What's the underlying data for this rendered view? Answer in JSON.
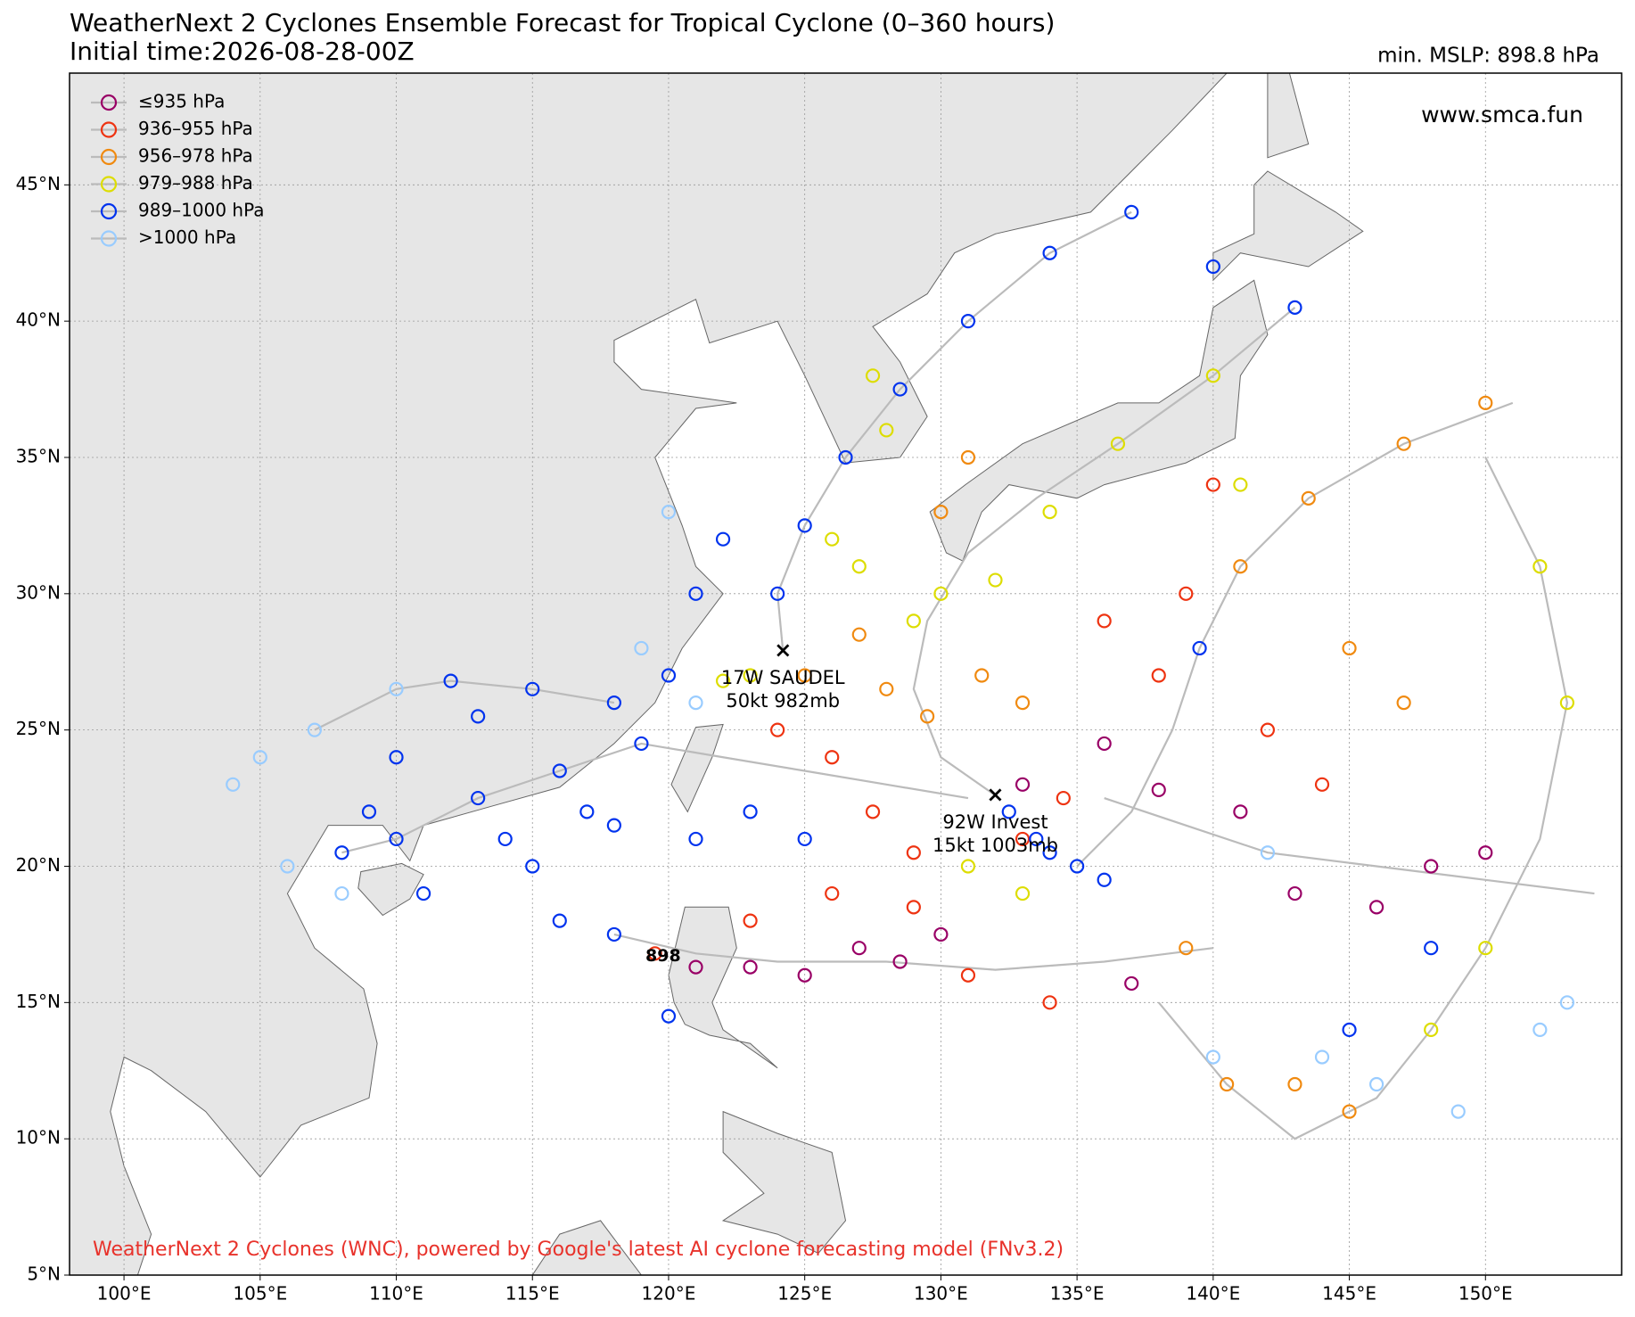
{
  "chart_data": {
    "type": "track-map",
    "title": "WeatherNext 2 Cyclones Ensemble Forecast for Tropical Cyclone (0–360 hours)",
    "subtitle": "Initial time:2026-08-28-00Z",
    "min_mslp": "min. MSLP: 898.8 hPa",
    "website": "www.smca.fun",
    "footer": "WeatherNext 2 Cyclones (WNC), powered by Google's latest AI cyclone forecasting model (FNv3.2)",
    "xlim": [
      98,
      155
    ],
    "ylim": [
      5,
      49.1
    ],
    "grid": true,
    "legend": "upper left",
    "track_color": "#bbbbbb",
    "xticks": [
      {
        "value": 100,
        "label": "100°E"
      },
      {
        "value": 105,
        "label": "105°E"
      },
      {
        "value": 110,
        "label": "110°E"
      },
      {
        "value": 115,
        "label": "115°E"
      },
      {
        "value": 120,
        "label": "120°E"
      },
      {
        "value": 125,
        "label": "125°E"
      },
      {
        "value": 130,
        "label": "130°E"
      },
      {
        "value": 135,
        "label": "135°E"
      },
      {
        "value": 140,
        "label": "140°E"
      },
      {
        "value": 145,
        "label": "145°E"
      },
      {
        "value": 150,
        "label": "150°E"
      }
    ],
    "yticks": [
      {
        "value": 5,
        "label": "5°N"
      },
      {
        "value": 10,
        "label": "10°N"
      },
      {
        "value": 15,
        "label": "15°N"
      },
      {
        "value": 20,
        "label": "20°N"
      },
      {
        "value": 25,
        "label": "25°N"
      },
      {
        "value": 30,
        "label": "30°N"
      },
      {
        "value": 35,
        "label": "35°N"
      },
      {
        "value": 40,
        "label": "40°N"
      },
      {
        "value": 45,
        "label": "45°N"
      }
    ],
    "tracks": [
      {
        "x": [
          131,
          128,
          125,
          122,
          119,
          116,
          113,
          110,
          108
        ],
        "y": [
          22.5,
          23,
          23.5,
          24,
          24.5,
          23.5,
          22.5,
          21,
          20.5
        ]
      },
      {
        "x": [
          124.2,
          124,
          125,
          126.5,
          128.5,
          131,
          134,
          137
        ],
        "y": [
          27.9,
          30,
          32.5,
          35,
          37.5,
          40,
          42.5,
          44
        ]
      },
      {
        "x": [
          132,
          130,
          129,
          129.5,
          131,
          133.5,
          136.5,
          140,
          143
        ],
        "y": [
          22.6,
          24,
          26.5,
          29,
          31.5,
          33.5,
          35.5,
          38,
          40.5
        ]
      },
      {
        "x": [
          135,
          137,
          138.5,
          139.5,
          141,
          143.5,
          147,
          151
        ],
        "y": [
          20,
          22,
          25,
          28,
          31,
          33.5,
          35.5,
          37
        ]
      },
      {
        "x": [
          140,
          136,
          132,
          128,
          124,
          121,
          118
        ],
        "y": [
          17,
          16.5,
          16.2,
          16.5,
          16.5,
          16.8,
          17.5
        ]
      },
      {
        "x": [
          154,
          150,
          146,
          142,
          139,
          136
        ],
        "y": [
          19,
          19.5,
          20,
          20.5,
          21.5,
          22.5
        ]
      },
      {
        "x": [
          138,
          140.5,
          143,
          146,
          148,
          150,
          152,
          153,
          152,
          150
        ],
        "y": [
          15,
          12,
          10,
          11.5,
          14,
          17,
          21,
          26,
          31,
          35
        ]
      },
      {
        "x": [
          118,
          115,
          112,
          110,
          107
        ],
        "y": [
          26,
          26.5,
          26.8,
          26.5,
          25
        ]
      }
    ],
    "series": [
      {
        "name": "≤935 hPa",
        "color": "#990066",
        "x": [
          127,
          128.5,
          130,
          143,
          146,
          148,
          150,
          141,
          138,
          136,
          133,
          121,
          125,
          123,
          137
        ],
        "y": [
          17,
          16.5,
          17.5,
          19,
          18.5,
          20,
          20.5,
          22,
          22.8,
          24.5,
          23,
          16.3,
          16,
          16.3,
          15.7
        ]
      },
      {
        "name": "936–955 hPa",
        "color": "#ee3311",
        "x": [
          124,
          126,
          127.5,
          129,
          133,
          134.5,
          138,
          139,
          140,
          136,
          142,
          144,
          129,
          126,
          131,
          134,
          119.5,
          123
        ],
        "y": [
          25,
          24,
          22,
          20.5,
          21,
          22.5,
          27,
          30,
          34,
          29,
          25,
          23,
          18.5,
          19,
          16,
          15,
          16.8,
          18
        ]
      },
      {
        "name": "956–978 hPa",
        "color": "#f08a10",
        "x": [
          125,
          127,
          128,
          129.5,
          131.5,
          133,
          141,
          143.5,
          147,
          150,
          145,
          147,
          139,
          143,
          145,
          140.5,
          130,
          131
        ],
        "y": [
          27,
          28.5,
          26.5,
          25.5,
          27,
          26,
          31,
          33.5,
          35.5,
          37,
          28,
          26,
          17,
          12,
          11,
          12,
          33,
          35
        ]
      },
      {
        "name": "979–988 hPa",
        "color": "#dddd00",
        "x": [
          122,
          123,
          126,
          127,
          129,
          130,
          132,
          134,
          136.5,
          140,
          141,
          152,
          153,
          150,
          148,
          131,
          133,
          128,
          127.5
        ],
        "y": [
          26.8,
          27,
          32,
          31,
          29,
          30,
          30.5,
          33,
          35.5,
          38,
          34,
          31,
          26,
          17,
          14,
          20,
          19,
          36,
          38
        ]
      },
      {
        "name": "989–1000 hPa",
        "color": "#0033ee",
        "x": [
          108,
          110,
          111,
          113,
          114,
          115,
          116,
          117,
          118,
          119,
          112,
          115,
          113,
          110,
          109,
          118,
          120,
          121,
          122,
          124,
          125,
          126.5,
          128.5,
          131,
          134,
          137,
          140,
          143,
          135,
          134,
          136,
          133.5,
          132.5,
          118,
          116,
          121,
          123,
          125,
          120,
          145,
          148,
          139.5
        ],
        "y": [
          20.5,
          21,
          19,
          22.5,
          21,
          20,
          23.5,
          22,
          21.5,
          24.5,
          26.8,
          26.5,
          25.5,
          24,
          22,
          26,
          27,
          30,
          32,
          30,
          32.5,
          35,
          37.5,
          40,
          42.5,
          44,
          42,
          40.5,
          20,
          20.5,
          19.5,
          21,
          22,
          17.5,
          18,
          21,
          22,
          21,
          14.5,
          14,
          17,
          28
        ]
      },
      {
        "name": ">1000 hPa",
        "color": "#99ccff",
        "x": [
          107,
          105,
          104,
          110,
          106,
          108,
          119,
          121,
          120,
          142,
          146,
          140,
          144,
          153,
          152,
          149
        ],
        "y": [
          25,
          24,
          23,
          26.5,
          20,
          19,
          28,
          26,
          33,
          20.5,
          12,
          13,
          13,
          15,
          14,
          11
        ]
      }
    ],
    "storms": [
      {
        "name": "17W SAUDEL",
        "info": "50kt 982mb",
        "x": 124.2,
        "y": 27.9
      },
      {
        "name": "92W Invest",
        "info": "15kt 1003mb",
        "x": 132,
        "y": 22.6
      }
    ],
    "annotations": [
      {
        "text": "898",
        "x": 119.8,
        "y": 16.7
      }
    ]
  }
}
